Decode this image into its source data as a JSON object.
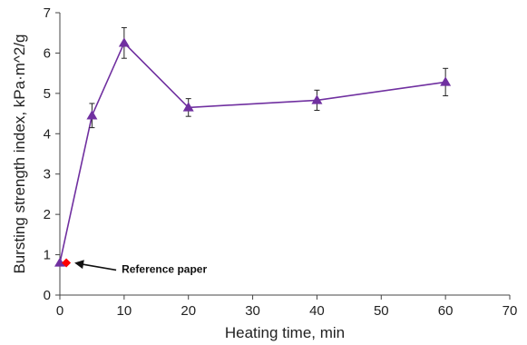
{
  "chart_data": {
    "type": "line",
    "xlabel": "Heating time, min",
    "ylabel": "Bursting strength index, kPa·m^2/g",
    "xlim": [
      0,
      70
    ],
    "ylim": [
      0,
      7
    ],
    "xticks": [
      "0",
      "10",
      "20",
      "30",
      "40",
      "50",
      "60",
      "70"
    ],
    "yticks": [
      "0",
      "1",
      "2",
      "3",
      "4",
      "5",
      "6",
      "7"
    ],
    "grid": false,
    "series": [
      {
        "color": "#7030A0",
        "marker": "triangle",
        "x": [
          0,
          5,
          10,
          20,
          40,
          60
        ],
        "y": [
          0.8,
          4.45,
          6.25,
          4.65,
          4.83,
          5.28
        ],
        "error": [
          0,
          0.3,
          0.38,
          0.22,
          0.25,
          0.34
        ]
      },
      {
        "color": "#FF0000",
        "marker": "diamond",
        "x": [
          1
        ],
        "y": [
          0.8
        ]
      }
    ],
    "annotations": [
      {
        "text": "Reference paper",
        "x": 1,
        "y": 0.8
      }
    ]
  }
}
